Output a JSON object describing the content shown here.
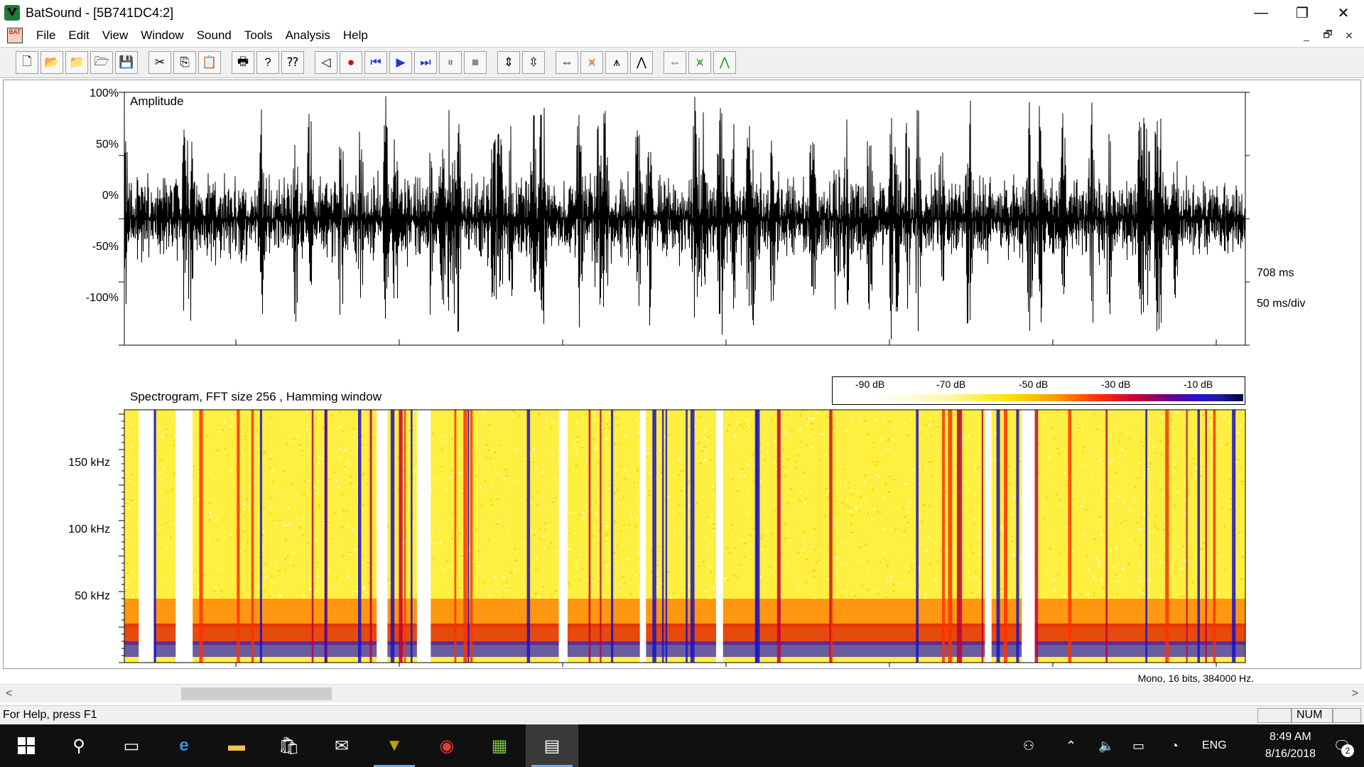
{
  "window": {
    "title": "BatSound - [5B741DC4:2]",
    "controls": {
      "minimize": "—",
      "maximize": "❐",
      "close": "✕"
    }
  },
  "menu": {
    "items": [
      "File",
      "Edit",
      "View",
      "Window",
      "Sound",
      "Tools",
      "Analysis",
      "Help"
    ],
    "mdi_controls": {
      "minimize": "_",
      "restore": "🗗",
      "close": "✕"
    }
  },
  "toolbar": {
    "groups": [
      [
        {
          "name": "new-file-icon",
          "glyph": "🗋"
        },
        {
          "name": "open-file-icon",
          "glyph": "📂"
        },
        {
          "name": "open-folder-icon",
          "glyph": "📁"
        },
        {
          "name": "open-recent-icon",
          "glyph": "🗁"
        },
        {
          "name": "save-icon",
          "glyph": "💾"
        }
      ],
      [
        {
          "name": "cut-icon",
          "glyph": "✂"
        },
        {
          "name": "copy-icon",
          "glyph": "⎘"
        },
        {
          "name": "paste-icon",
          "glyph": "📋"
        }
      ],
      [
        {
          "name": "print-icon",
          "glyph": "🖶"
        },
        {
          "name": "help-icon",
          "glyph": "?"
        },
        {
          "name": "context-help-icon",
          "glyph": "⁇"
        }
      ],
      [
        {
          "name": "input-level-icon",
          "glyph": "◁"
        },
        {
          "name": "record-icon",
          "glyph": "●",
          "color": "#e00000"
        },
        {
          "name": "skip-back-icon",
          "glyph": "⏮",
          "color": "#1a35d8"
        },
        {
          "name": "play-icon",
          "glyph": "▶",
          "color": "#1a35d8"
        },
        {
          "name": "skip-forward-icon",
          "glyph": "⏭",
          "color": "#1a35d8"
        },
        {
          "name": "pause-icon",
          "glyph": "⏸",
          "color": "#8a8a8a"
        },
        {
          "name": "stop-icon",
          "glyph": "■",
          "color": "#8a8a8a"
        }
      ],
      [
        {
          "name": "zoom-in-vertical-icon",
          "glyph": "⇕"
        },
        {
          "name": "zoom-out-vertical-icon",
          "glyph": "⇳"
        }
      ],
      [
        {
          "name": "zoom-time-icon",
          "glyph": "⇔"
        },
        {
          "name": "spectrogram-icon",
          "glyph": "⩙",
          "color": "#e06000"
        },
        {
          "name": "sonagram-icon",
          "glyph": "⩚"
        },
        {
          "name": "power-spectrum-icon",
          "glyph": "⋀"
        }
      ],
      [
        {
          "name": "zoom-time-green-icon",
          "glyph": "⇔",
          "color": "#1a9a1a"
        },
        {
          "name": "spectrum-green-icon",
          "glyph": "⩙",
          "color": "#1a9a1a"
        },
        {
          "name": "peaks-green-icon",
          "glyph": "⋀",
          "color": "#1a9a1a"
        }
      ]
    ]
  },
  "amplitude": {
    "title": "Amplitude",
    "y_ticks": [
      "100%",
      "50%",
      "0%",
      "-50%",
      "-100%"
    ],
    "duration_label": "708 ms",
    "scale_label": "50 ms/div"
  },
  "spectrogram": {
    "title": "Spectrogram, FFT size 256 , Hamming window",
    "y_ticks": [
      "150 kHz",
      "100 kHz",
      "50 kHz"
    ],
    "color_scale": [
      "-90 dB",
      "-70 dB",
      "-50 dB",
      "-30 dB",
      "-10 dB"
    ]
  },
  "format_info": "Mono, 16 bits, 384000 Hz.",
  "scrollbar": {
    "left": "<",
    "right": ">"
  },
  "statusbar": {
    "help": "For Help, press F1",
    "indicators": [
      "",
      "NUM",
      ""
    ]
  },
  "taskbar": {
    "language": "ENG",
    "time": "8:49 AM",
    "date": "8/16/2018",
    "notifications": "2"
  },
  "colors": {
    "spectrogram_low": "#ffff00",
    "spectrogram_mid": "#ff3000",
    "spectrogram_high": "#1a10c8",
    "taskbar_bg": "#101010"
  }
}
